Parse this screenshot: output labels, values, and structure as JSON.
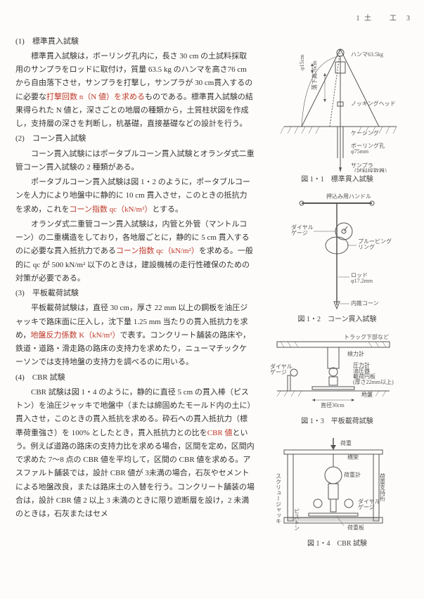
{
  "header": "1 土　　工　3",
  "sections": [
    {
      "num": "(1)",
      "title": "標準貫入試験",
      "body": [
        {
          "runs": [
            {
              "t": "　標準貫入試験は，ボーリング孔内に，長さ 30 cm の土試料採取用のサンプラをロッドに取付け，質量 63.5 kg のハンマを高さ76 cm から自由落下させ，サンプラを打撃し，サンプラが 30 cm貫入するのに必要な"
            },
            {
              "t": "打撃回数 n（N 値）を求める",
              "red": true
            },
            {
              "t": "ものである。標準貫入試験の結果得られた N 値と，深さごとの地層の種類から，土質柱状図を作成し，支持層の深さを判断し，杭基礎，直接基礎などの設計を行う。"
            }
          ]
        }
      ]
    },
    {
      "num": "(2)",
      "title": "コーン貫入試験",
      "body": [
        {
          "runs": [
            {
              "t": "　コーン貫入試験にはポータブルコーン貫入試験とオランダ式二重管コーン貫入試験の 2 種類がある。"
            }
          ]
        },
        {
          "runs": [
            {
              "t": "　ポータブルコーン貫入試験は図 1・2 のように，ポータブルコーンを人力により地盤中に静的に 10 cm 貫入させ，このときの抵抗力を求め，これを"
            },
            {
              "t": "コーン指数 qc（kN/m²）",
              "red": true
            },
            {
              "t": "とする。"
            }
          ]
        },
        {
          "runs": [
            {
              "t": "　オランダ式二重管コーン貫入試験は，内管と外管（マントルコーン）の二重構造をしており，各地層ごとに，静的に 5 cm 貫入するのに必要な貫入抵抗力である"
            },
            {
              "t": "コーン指数 qc（kN/m²）",
              "red": true
            },
            {
              "t": "を求める。一般的に qc が 500 kN/m² 以下のときは，建設機械の走行性確保のための対策が必要である。"
            }
          ]
        }
      ]
    },
    {
      "num": "(3)",
      "title": "平板載荷試験",
      "body": [
        {
          "runs": [
            {
              "t": "　平板載荷試験は，直径 30 cm，厚さ 22 mm 以上の鋼板を油圧ジャッキで路床面に圧入し，沈下量 1.25 mm 当たりの貫入抵抗力を求め，"
            },
            {
              "t": "地盤反力係数 K（kN/m³）",
              "red": true
            },
            {
              "t": "で表す。コンクリート舗装の路床や，鉄道・道路・滑走路の路床の支持力を求めたり，ニューマチックケーソンでは支持地盤の支持力を調べるのに用いる。"
            }
          ]
        }
      ]
    },
    {
      "num": "(4)",
      "title": "CBR 試験",
      "body": [
        {
          "runs": [
            {
              "t": "　CBR 試験は図 1・4 のように，静的に直径 5 cm の貫入棒（ピストン）を油圧ジャッキで地盤中（または締固めたモールド内の土に）貫入させ，このときの貫入抵抗を求める。砕石への貫入抵抗力（標準荷重強さ）を 100% としたとき，貫入抵抗力との比を"
            },
            {
              "t": "CBR 値",
              "red": true
            },
            {
              "t": "という。例えば道路の路床の支持力比を求める場合，区間を定め，区間内で求めた 7～8 点の CBR 値を平均して，区間の CBR 値を求める。アスファルト舗装では，設計 CBR 値が 3未満の場合，石灰やセメントによる地盤改良，または路床土の入替を行う。コンクリート舗装の場合は，設計 CBR 値 2 以上 3 未満のときに限り遮断層を設け，2 未満のときは，石灰またはセメ"
            }
          ]
        }
      ]
    }
  ],
  "figures": [
    {
      "caption": "図 1・1　標準貫入試験",
      "labels": {
        "hammer": "ハンマ63.5kg",
        "head": "ノッキングヘッド",
        "casing": "ケーシング",
        "boring": "ボーリング孔\nφ75mm",
        "sampler": "サンプラ\n（試料採取器）",
        "drop": "落下高76cm",
        "d": "φ15cm"
      }
    },
    {
      "caption": "図 1・2　コーン貫入試験",
      "labels": {
        "handle": "押込み用ハンドル",
        "dial": "ダイヤル\nゲージ",
        "ring": "プルービング\nリング",
        "rod": "ロッド\nφ17.2mm",
        "cone": "内錐コーン"
      }
    },
    {
      "caption": "図 1・3　平板載荷試験",
      "labels": {
        "truck": "トラック下部など",
        "meter": "検力計",
        "dial": "ダイヤル\nゲージ",
        "jack": "圧力計\n油圧器\n載荷円板\n(厚さ22mm以上)",
        "ground": "地盤",
        "d": "直径30cm"
      }
    },
    {
      "caption": "図 1・4　CBR 試験",
      "labels": {
        "load": "荷重",
        "cross": "横架",
        "support": "荷重支持桁",
        "weight": "荷重計",
        "dial": "ダイヤル\nゲージ",
        "screw": "スクリュージャッキ",
        "piston": "ピストン",
        "plate": "荷重板"
      }
    }
  ]
}
